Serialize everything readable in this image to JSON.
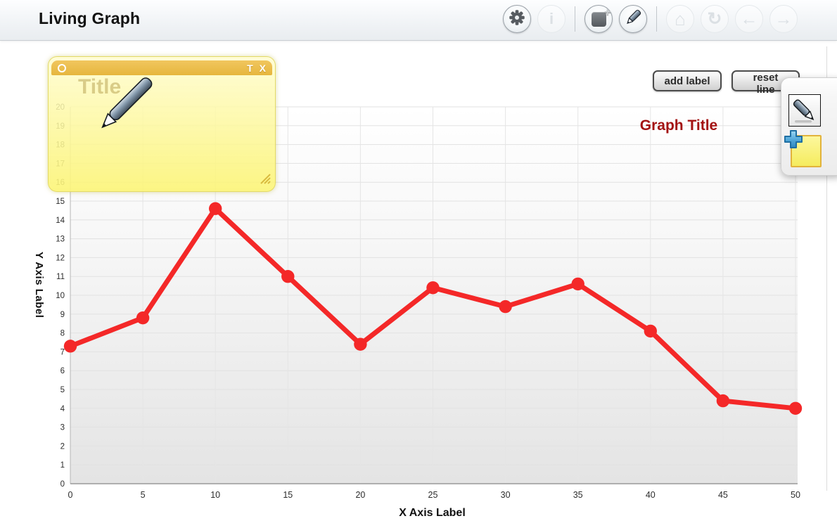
{
  "header": {
    "title": "Living Graph",
    "toolbar": {
      "info_glyph": "i",
      "home_glyph": "⌂",
      "refresh_glyph": "↻",
      "back_glyph": "←",
      "forward_glyph": "→"
    }
  },
  "controls": {
    "add_label": "add label",
    "reset_line": "reset line"
  },
  "note": {
    "title_placeholder": "Title",
    "text_button": "T",
    "close_button": "X"
  },
  "chart_data": {
    "type": "line",
    "title": "Graph Title",
    "xlabel": "X Axis Label",
    "ylabel": "Y Axis Label",
    "x": [
      0,
      5,
      10,
      15,
      20,
      25,
      30,
      35,
      40,
      45,
      50
    ],
    "y": [
      7.3,
      8.8,
      14.6,
      11.0,
      7.4,
      10.4,
      9.4,
      10.6,
      8.1,
      4.4,
      4.0
    ],
    "xlim": [
      0,
      50
    ],
    "ylim": [
      0,
      20
    ],
    "x_tick_step": 5,
    "y_tick_step": 1,
    "grid": true,
    "legend": "none",
    "line_color": "#f42828",
    "point_color": "#f42828",
    "title_color": "#a31212"
  }
}
